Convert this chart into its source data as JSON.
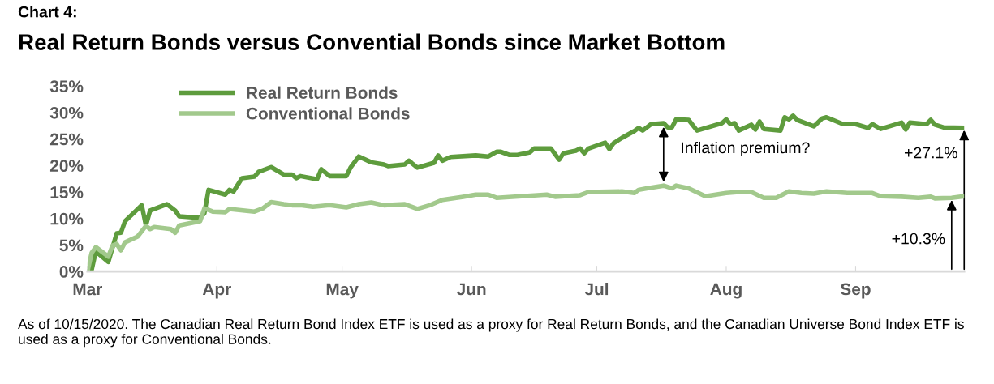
{
  "chart_data": {
    "type": "line",
    "subtitle": "Chart 4:",
    "title": "Real Return Bonds versus Convential Bonds since Market Bottom",
    "xlim": [
      "2020-03-01",
      "2020-09-27"
    ],
    "xticks": [
      {
        "value": "2020-03-01",
        "label": "Mar"
      },
      {
        "value": "2020-04-01",
        "label": "Apr"
      },
      {
        "value": "2020-05-01",
        "label": "May"
      },
      {
        "value": "2020-06-01",
        "label": "Jun"
      },
      {
        "value": "2020-07-01",
        "label": "Jul"
      },
      {
        "value": "2020-08-01",
        "label": "Aug"
      },
      {
        "value": "2020-09-01",
        "label": "Sep"
      }
    ],
    "ylim": [
      0,
      35
    ],
    "yticks": [
      {
        "value": 0,
        "label": "0%"
      },
      {
        "value": 5,
        "label": "5%"
      },
      {
        "value": 10,
        "label": "10%"
      },
      {
        "value": 15,
        "label": "15%"
      },
      {
        "value": 20,
        "label": "20%"
      },
      {
        "value": 25,
        "label": "25%"
      },
      {
        "value": 30,
        "label": "30%"
      },
      {
        "value": 35,
        "label": "35%"
      }
    ],
    "grid": false,
    "legend": "top left",
    "series": [
      {
        "name": "Real Return Bonds",
        "color": "#5e9c3d",
        "x": [
          "2020-03-01",
          "2020-03-02",
          "2020-03-03",
          "2020-03-06",
          "2020-03-08",
          "2020-03-09",
          "2020-03-10",
          "2020-03-14",
          "2020-03-15",
          "2020-03-16",
          "2020-03-20",
          "2020-03-22",
          "2020-03-23",
          "2020-03-28",
          "2020-03-29",
          "2020-03-30",
          "2020-04-03",
          "2020-04-04",
          "2020-04-05",
          "2020-04-07",
          "2020-04-10",
          "2020-04-11",
          "2020-04-14",
          "2020-04-17",
          "2020-04-19",
          "2020-04-20",
          "2020-04-21",
          "2020-04-25",
          "2020-04-26",
          "2020-04-28",
          "2020-05-02",
          "2020-05-03",
          "2020-05-05",
          "2020-05-08",
          "2020-05-11",
          "2020-05-12",
          "2020-05-16",
          "2020-05-17",
          "2020-05-19",
          "2020-05-23",
          "2020-05-24",
          "2020-05-25",
          "2020-05-27",
          "2020-06-02",
          "2020-06-05",
          "2020-06-07",
          "2020-06-08",
          "2020-06-10",
          "2020-06-12",
          "2020-06-15",
          "2020-06-16",
          "2020-06-20",
          "2020-06-22",
          "2020-06-23",
          "2020-06-26",
          "2020-06-27",
          "2020-06-28",
          "2020-06-29",
          "2020-07-03",
          "2020-07-04",
          "2020-07-05",
          "2020-07-07",
          "2020-07-10",
          "2020-07-11",
          "2020-07-12",
          "2020-07-14",
          "2020-07-17",
          "2020-07-18",
          "2020-07-19",
          "2020-07-20",
          "2020-07-23",
          "2020-07-25",
          "2020-07-31",
          "2020-08-01",
          "2020-08-02",
          "2020-08-03",
          "2020-08-04",
          "2020-08-07",
          "2020-08-08",
          "2020-08-09",
          "2020-08-10",
          "2020-08-14",
          "2020-08-15",
          "2020-08-16",
          "2020-08-17",
          "2020-08-18",
          "2020-08-22",
          "2020-08-24",
          "2020-08-25",
          "2020-08-29",
          "2020-09-01",
          "2020-09-04",
          "2020-09-05",
          "2020-09-07",
          "2020-09-12",
          "2020-09-13",
          "2020-09-14",
          "2020-09-18",
          "2020-09-19",
          "2020-09-20",
          "2020-09-22",
          "2020-09-27"
        ],
        "values": [
          0,
          0.3,
          3.8,
          1.8,
          7.2,
          7.3,
          9.5,
          12.5,
          8.7,
          11.5,
          12.7,
          11.5,
          10.4,
          10.1,
          11,
          15.4,
          14.5,
          15.4,
          15.1,
          17.6,
          17.9,
          18.8,
          19.7,
          18.3,
          18.3,
          17.6,
          18.0,
          17.4,
          19.3,
          18.0,
          18.0,
          19.6,
          21.7,
          20.6,
          20.2,
          19.9,
          20.2,
          20.9,
          19.6,
          20.5,
          21.9,
          20.9,
          21.6,
          21.9,
          21.7,
          22.6,
          22.6,
          22.0,
          22.0,
          22.5,
          23.2,
          23.2,
          21.1,
          22.3,
          22.8,
          23.2,
          22.3,
          23.2,
          24.3,
          23.1,
          24.2,
          25.2,
          26.5,
          27.1,
          26.6,
          27.8,
          28.0,
          27.2,
          27.2,
          28.7,
          28.6,
          26.6,
          28.0,
          28.7,
          27.8,
          28.0,
          26.6,
          27.7,
          26.8,
          28.3,
          26.9,
          26.6,
          29.1,
          28.7,
          29.4,
          28.6,
          27.4,
          28.9,
          29.1,
          27.8,
          27.8,
          27.1,
          27.8,
          26.9,
          28.1,
          26.8,
          28.1,
          27.8,
          28.6,
          27.7,
          27.2,
          27.1
        ]
      },
      {
        "name": "Conventional Bonds",
        "color": "#a2c98c",
        "x": [
          "2020-03-01",
          "2020-03-02",
          "2020-03-03",
          "2020-03-06",
          "2020-03-07",
          "2020-03-08",
          "2020-03-09",
          "2020-03-10",
          "2020-03-13",
          "2020-03-15",
          "2020-03-16",
          "2020-03-17",
          "2020-03-21",
          "2020-03-22",
          "2020-03-23",
          "2020-03-28",
          "2020-03-29",
          "2020-03-31",
          "2020-04-03",
          "2020-04-04",
          "2020-04-10",
          "2020-04-12",
          "2020-04-14",
          "2020-04-17",
          "2020-04-19",
          "2020-04-21",
          "2020-04-24",
          "2020-04-28",
          "2020-05-02",
          "2020-05-05",
          "2020-05-08",
          "2020-05-11",
          "2020-05-16",
          "2020-05-19",
          "2020-05-22",
          "2020-05-25",
          "2020-05-30",
          "2020-06-02",
          "2020-06-05",
          "2020-06-07",
          "2020-06-19",
          "2020-06-21",
          "2020-06-27",
          "2020-06-29",
          "2020-07-07",
          "2020-07-10",
          "2020-07-11",
          "2020-07-13",
          "2020-07-17",
          "2020-07-19",
          "2020-07-20",
          "2020-07-23",
          "2020-07-27",
          "2020-08-01",
          "2020-08-04",
          "2020-08-07",
          "2020-08-10",
          "2020-08-13",
          "2020-08-16",
          "2020-08-19",
          "2020-08-22",
          "2020-08-25",
          "2020-08-30",
          "2020-09-05",
          "2020-09-07",
          "2020-09-12",
          "2020-09-16",
          "2020-09-19",
          "2020-09-20",
          "2020-09-24",
          "2020-09-27"
        ],
        "values": [
          0,
          3.5,
          4.6,
          2.8,
          4.9,
          5.2,
          4.0,
          5.5,
          6.6,
          8.6,
          8.0,
          8.4,
          8.0,
          7.3,
          8.7,
          9.5,
          11.9,
          11.3,
          11.2,
          11.8,
          11.3,
          11.9,
          13.1,
          12.7,
          12.5,
          12.5,
          12.2,
          12.5,
          12.1,
          12.7,
          13.0,
          12.5,
          12.7,
          11.8,
          12.5,
          13.5,
          14.1,
          14.5,
          14.5,
          13.9,
          14.5,
          14.1,
          14.4,
          15.0,
          15.1,
          14.8,
          15.4,
          15.7,
          16.2,
          15.7,
          16.2,
          15.7,
          14.2,
          14.8,
          15.0,
          15.0,
          13.9,
          13.9,
          15.1,
          14.8,
          14.7,
          15.1,
          14.8,
          14.8,
          14.2,
          14.1,
          13.9,
          14.1,
          13.8,
          13.9,
          14.2
        ]
      }
    ],
    "annotations": [
      "Inflation premium?",
      "+27.1%",
      "+10.3%",
      "As of 10/15/2020. The Canadian Real Return Bond Index ETF is used as a proxy for Real Return Bonds, and the Canadian Universe Bond Index ETF is used as a proxy for Conventional Bonds."
    ]
  }
}
